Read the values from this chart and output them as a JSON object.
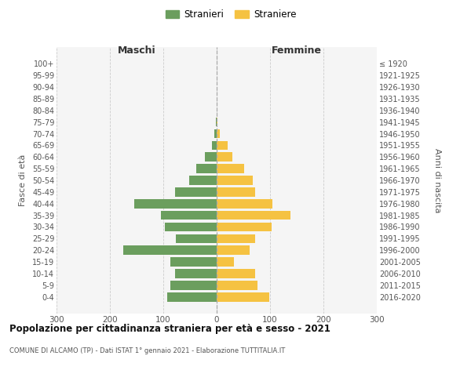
{
  "age_groups": [
    "100+",
    "95-99",
    "90-94",
    "85-89",
    "80-84",
    "75-79",
    "70-74",
    "65-69",
    "60-64",
    "55-59",
    "50-54",
    "45-49",
    "40-44",
    "35-39",
    "30-34",
    "25-29",
    "20-24",
    "15-19",
    "10-14",
    "5-9",
    "0-4"
  ],
  "birth_years": [
    "≤ 1920",
    "1921-1925",
    "1926-1930",
    "1931-1935",
    "1936-1940",
    "1941-1945",
    "1946-1950",
    "1951-1955",
    "1956-1960",
    "1961-1965",
    "1966-1970",
    "1971-1975",
    "1976-1980",
    "1981-1985",
    "1986-1990",
    "1991-1995",
    "1996-2000",
    "2001-2005",
    "2006-2010",
    "2011-2015",
    "2016-2020"
  ],
  "maschi": [
    0,
    0,
    0,
    0,
    0,
    2,
    4,
    9,
    22,
    38,
    52,
    78,
    155,
    105,
    97,
    77,
    175,
    87,
    78,
    87,
    92
  ],
  "femmine": [
    0,
    0,
    0,
    0,
    0,
    2,
    6,
    20,
    30,
    52,
    68,
    72,
    105,
    138,
    103,
    72,
    62,
    32,
    72,
    77,
    98
  ],
  "male_color": "#6b9e5e",
  "female_color": "#f5c242",
  "title": "Popolazione per cittadinanza straniera per età e sesso - 2021",
  "subtitle": "COMUNE DI ALCAMO (TP) - Dati ISTAT 1° gennaio 2021 - Elaborazione TUTTITALIA.IT",
  "label_maschi": "Maschi",
  "label_femmine": "Femmine",
  "ylabel_left": "Fasce di età",
  "ylabel_right": "Anni di nascita",
  "legend_male": "Stranieri",
  "legend_female": "Straniere",
  "xlim": 300,
  "plot_bg": "#f5f5f5"
}
